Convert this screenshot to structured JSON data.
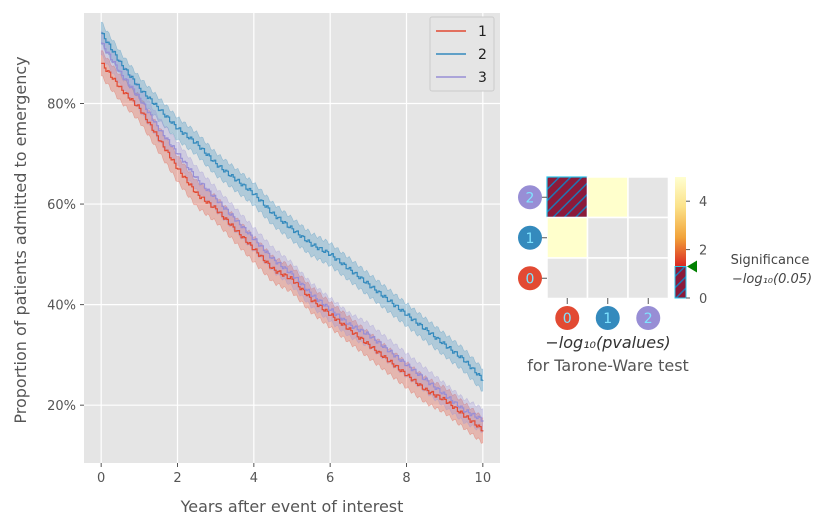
{
  "chart_data": [
    {
      "type": "line",
      "subtype": "step-survival-with-confidence-bands",
      "xlabel": "Years after event of interest",
      "ylabel": "Proportion of patients admitted to emergency",
      "xlim": [
        -0.45,
        10.45
      ],
      "ylim": [
        0.085,
        0.98
      ],
      "x_ticks": [
        0,
        2,
        4,
        6,
        8,
        10
      ],
      "x_tick_labels": [
        "0",
        "2",
        "4",
        "6",
        "8",
        "10"
      ],
      "y_ticks": [
        0.2,
        0.4,
        0.6,
        0.8
      ],
      "y_tick_labels": [
        "20%",
        "40%",
        "60%",
        "80%"
      ],
      "grid": true,
      "legend_position": "top-right",
      "x": [
        0,
        0.5,
        1,
        1.5,
        2,
        2.5,
        3,
        3.5,
        4,
        4.5,
        5,
        5.5,
        6,
        6.5,
        7,
        7.5,
        8,
        8.5,
        9,
        9.5,
        10
      ],
      "series": [
        {
          "name": "1",
          "color": "#e24a33",
          "values": [
            0.88,
            0.83,
            0.79,
            0.73,
            0.67,
            0.62,
            0.59,
            0.55,
            0.51,
            0.47,
            0.45,
            0.41,
            0.38,
            0.35,
            0.32,
            0.29,
            0.26,
            0.23,
            0.21,
            0.18,
            0.15
          ],
          "band_halfwidth": 0.025
        },
        {
          "name": "2",
          "color": "#348abd",
          "values": [
            0.94,
            0.88,
            0.83,
            0.79,
            0.75,
            0.72,
            0.68,
            0.65,
            0.62,
            0.58,
            0.55,
            0.52,
            0.5,
            0.47,
            0.44,
            0.41,
            0.38,
            0.35,
            0.32,
            0.29,
            0.25
          ],
          "band_halfwidth": 0.022
        },
        {
          "name": "3",
          "color": "#988ed5",
          "values": [
            0.92,
            0.86,
            0.81,
            0.75,
            0.7,
            0.65,
            0.61,
            0.57,
            0.53,
            0.49,
            0.46,
            0.42,
            0.39,
            0.36,
            0.34,
            0.31,
            0.28,
            0.25,
            0.22,
            0.19,
            0.17
          ],
          "band_halfwidth": 0.023
        }
      ]
    },
    {
      "type": "heatmap",
      "subtitle_lines": [
        "−log₁₀(pvalues)",
        "for Tarone-Ware test"
      ],
      "x_tick_labels": [
        "0",
        "1",
        "2"
      ],
      "y_tick_labels": [
        "2",
        "1",
        "0"
      ],
      "marker_colors": [
        "#e24a33",
        "#348abd",
        "#988ed5"
      ],
      "cells": [
        {
          "row": 0,
          "col": 0,
          "state": "significant-hatched"
        },
        {
          "row": 0,
          "col": 1,
          "state": "light-yellow"
        },
        {
          "row": 0,
          "col": 2,
          "state": "empty"
        },
        {
          "row": 1,
          "col": 0,
          "state": "light-yellow"
        },
        {
          "row": 1,
          "col": 1,
          "state": "empty"
        },
        {
          "row": 1,
          "col": 2,
          "state": "empty"
        },
        {
          "row": 2,
          "col": 0,
          "state": "empty"
        },
        {
          "row": 2,
          "col": 1,
          "state": "empty"
        },
        {
          "row": 2,
          "col": 2,
          "state": "empty"
        }
      ],
      "colorbar": {
        "vmin": 0,
        "vmax": 5,
        "ticks": [
          0,
          2,
          4
        ],
        "tick_labels": [
          "0",
          "2",
          "4"
        ],
        "threshold_value": 1.301,
        "threshold_label_lines": [
          "Significance",
          "−log₁₀(0.05)"
        ],
        "threshold_marker_color": "#008000"
      }
    }
  ]
}
